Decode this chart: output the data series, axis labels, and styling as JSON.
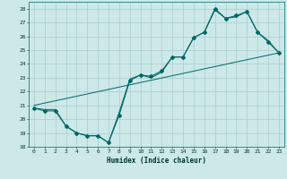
{
  "title": "",
  "xlabel": "Humidex (Indice chaleur)",
  "xlim": [
    -0.5,
    23.5
  ],
  "ylim": [
    18,
    28.5
  ],
  "xticks": [
    0,
    1,
    2,
    3,
    4,
    5,
    6,
    7,
    8,
    9,
    10,
    11,
    12,
    13,
    14,
    15,
    16,
    17,
    18,
    19,
    20,
    21,
    22,
    23
  ],
  "yticks": [
    18,
    19,
    20,
    21,
    22,
    23,
    24,
    25,
    26,
    27,
    28
  ],
  "background_color": "#cce8e8",
  "grid_color": "#aacccc",
  "line_color": "#006666",
  "line1_x": [
    0,
    1,
    2,
    3,
    4,
    5,
    6,
    7,
    8,
    9,
    10,
    11,
    12,
    13,
    14,
    15,
    16,
    17,
    18,
    19,
    20,
    21,
    22,
    23
  ],
  "line1_y": [
    20.8,
    20.6,
    20.6,
    19.5,
    19.0,
    18.8,
    18.8,
    18.3,
    20.3,
    22.8,
    23.2,
    23.1,
    23.5,
    24.5,
    24.5,
    25.9,
    26.3,
    28.0,
    27.3,
    27.5,
    27.8,
    26.3,
    25.6,
    24.8
  ],
  "line2_x": [
    0,
    1,
    2,
    3,
    4,
    5,
    6,
    7,
    8,
    9,
    10,
    11,
    12,
    13,
    14,
    15,
    16,
    17,
    18,
    19,
    20,
    21,
    22,
    23
  ],
  "line2_y": [
    20.8,
    20.7,
    20.7,
    19.5,
    19.0,
    18.8,
    18.8,
    18.3,
    20.5,
    22.9,
    23.2,
    23.0,
    23.4,
    24.5,
    24.5,
    25.9,
    26.3,
    27.9,
    27.3,
    27.4,
    27.8,
    26.3,
    25.7,
    24.8
  ],
  "line3_x": [
    0,
    23
  ],
  "line3_y": [
    21.0,
    24.8
  ]
}
